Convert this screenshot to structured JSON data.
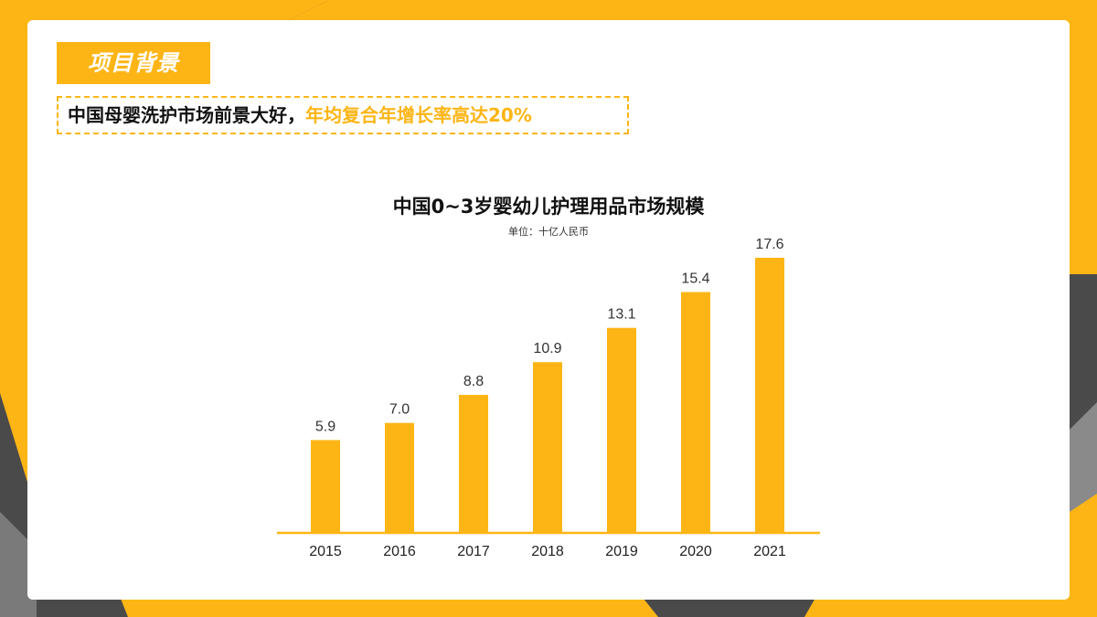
{
  "slide": {
    "tag": "项目背景",
    "headline_main": "中国母婴洗护市场前景大好，",
    "headline_highlight": "年均复合年增长率高达20%"
  },
  "chart_data": {
    "type": "bar",
    "title": "中国0~3岁婴幼儿护理用品市场规模",
    "unit": "单位：十亿人民币",
    "categories": [
      "2015",
      "2016",
      "2017",
      "2018",
      "2019",
      "2020",
      "2021"
    ],
    "values": [
      5.9,
      7.0,
      8.8,
      10.9,
      13.1,
      15.4,
      17.6
    ],
    "value_labels": [
      "5.9",
      "7.0",
      "8.8",
      "10.9",
      "13.1",
      "15.4",
      "17.6"
    ],
    "ylim": [
      0,
      17.6
    ],
    "grid": false,
    "legend": "none"
  },
  "colors": {
    "accent": "#FDB515",
    "frame_dark": "#555555",
    "text": "#111111"
  }
}
